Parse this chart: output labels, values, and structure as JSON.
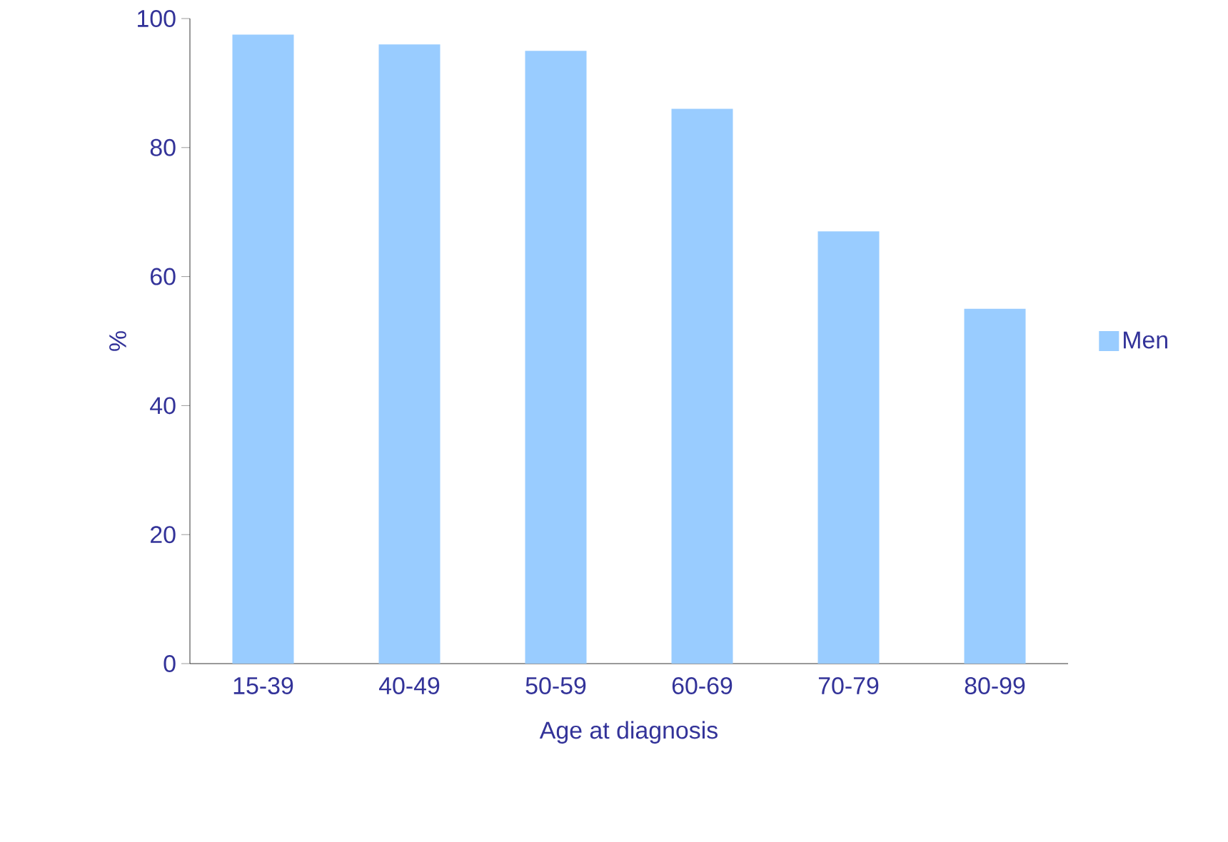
{
  "chart_data": {
    "type": "bar",
    "xlabel": "Age at diagnosis",
    "ylabel": "%",
    "categories": [
      "15-39",
      "40-49",
      "50-59",
      "60-69",
      "70-79",
      "80-99"
    ],
    "series": [
      {
        "name": "Men",
        "color": "#99ccff",
        "values": [
          97.5,
          96,
          95,
          86,
          67,
          55
        ]
      }
    ],
    "ylim": [
      0,
      100
    ],
    "yticks": [
      0,
      20,
      40,
      60,
      80,
      100
    ],
    "grid": false,
    "legend": "right"
  }
}
